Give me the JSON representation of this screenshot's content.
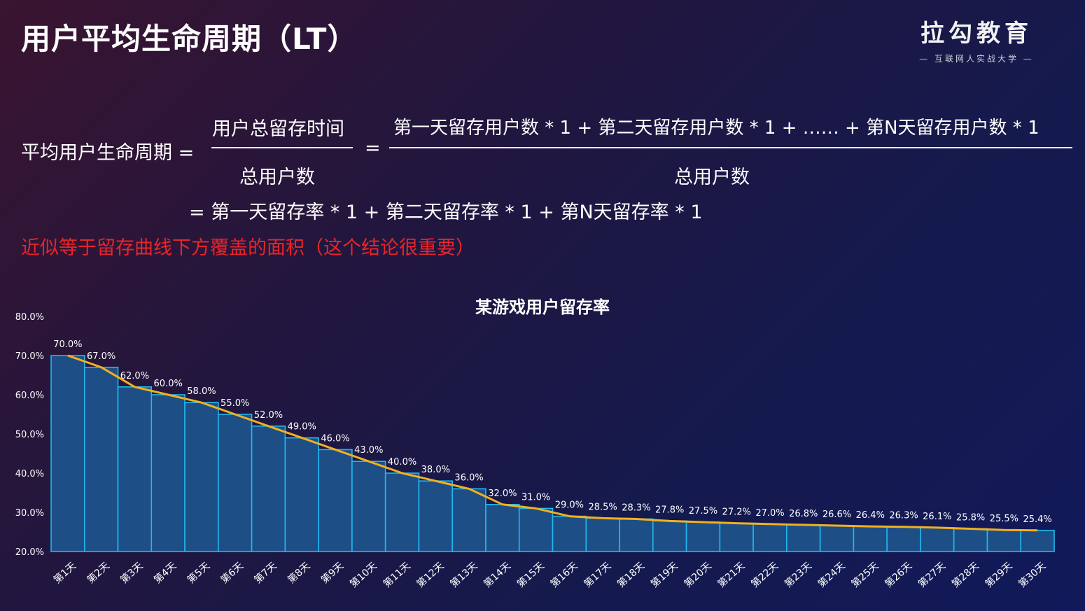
{
  "header": {
    "title": "用户平均生命周期（LT）",
    "logo_main": "拉勾教育",
    "logo_sub": "— 互联网人实战大学 —"
  },
  "formula": {
    "lhs": "平均用户生命周期 =",
    "frac1_num": "用户总留存时间",
    "frac1_den": "总用户数",
    "eq": "=",
    "frac2_num": "第一天留存用户数 * 1 + 第二天留存用户数 * 1 + …… + 第N天留存用户数 * 1",
    "frac2_den": "总用户数",
    "line2": "= 第一天留存率 * 1 + 第二天留存率 * 1 + 第N天留存率 * 1",
    "note": "近似等于留存曲线下方覆盖的面积（这个结论很重要）"
  },
  "chart_data": {
    "type": "bar",
    "title": "某游戏用户留存率",
    "categories": [
      "第1天",
      "第2天",
      "第3天",
      "第4天",
      "第5天",
      "第6天",
      "第7天",
      "第8天",
      "第9天",
      "第10天",
      "第11天",
      "第12天",
      "第13天",
      "第14天",
      "第15天",
      "第16天",
      "第17天",
      "第18天",
      "第19天",
      "第20天",
      "第21天",
      "第22天",
      "第23天",
      "第24天",
      "第25天",
      "第26天",
      "第27天",
      "第28天",
      "第29天",
      "第30天"
    ],
    "values": [
      70.0,
      67.0,
      62.0,
      60.0,
      58.0,
      55.0,
      52.0,
      49.0,
      46.0,
      43.0,
      40.0,
      38.0,
      36.0,
      32.0,
      31.0,
      29.0,
      28.5,
      28.3,
      27.8,
      27.5,
      27.2,
      27.0,
      26.8,
      26.6,
      26.4,
      26.3,
      26.1,
      25.8,
      25.5,
      25.4
    ],
    "labels": [
      "70.0%",
      "67.0%",
      "62.0%",
      "60.0%",
      "58.0%",
      "55.0%",
      "52.0%",
      "49.0%",
      "46.0%",
      "43.0%",
      "40.0%",
      "38.0%",
      "36.0%",
      "32.0%",
      "31.0%",
      "29.0%",
      "28.5%",
      "28.3%",
      "27.8%",
      "27.5%",
      "27.2%",
      "27.0%",
      "26.8%",
      "26.6%",
      "26.4%",
      "26.3%",
      "26.1%",
      "25.8%",
      "25.5%",
      "25.4%"
    ],
    "ylim": [
      20,
      80
    ],
    "yticks": [
      "20.0%",
      "30.0%",
      "40.0%",
      "50.0%",
      "60.0%",
      "70.0%",
      "80.0%"
    ],
    "overlay": "line",
    "colors": {
      "bar_fill": "#1d4f86",
      "bar_stroke": "#1fb8f0",
      "line": "#f2b01e",
      "text": "#ffffff"
    }
  }
}
